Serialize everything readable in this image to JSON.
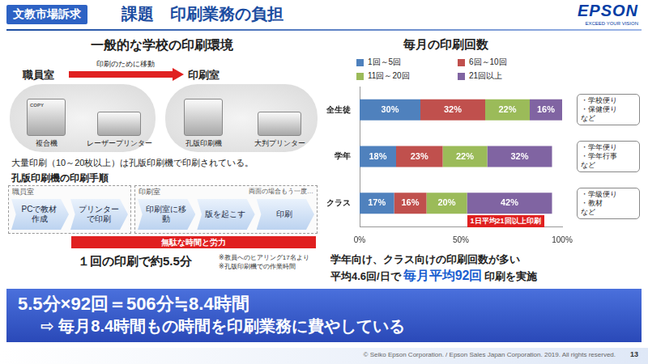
{
  "header": {
    "tag": "文教市場訴求",
    "title": "課題　印刷業務の負担",
    "logo": "EPSON",
    "logo_tagline": "EXCEED YOUR VISION"
  },
  "environment": {
    "title": "一般的な学校の印刷環境",
    "from_room": "職員室",
    "to_room": "印刷室",
    "move_label": "印刷のために移動",
    "from_devices": [
      {
        "label": "複合機",
        "badge": "COPY"
      },
      {
        "label": "レーザープリンター"
      }
    ],
    "to_devices": [
      {
        "label": "孔版印刷機"
      },
      {
        "label": "大判プリンター"
      }
    ],
    "note": "大量印刷（10～20枚以上）は孔版印刷機で印刷されている。"
  },
  "procedure": {
    "title": "孔版印刷機の印刷手順",
    "groups": [
      {
        "label": "職員室",
        "steps": [
          "PCで教材作成",
          "プリンターで印刷"
        ]
      },
      {
        "label": "印刷室",
        "steps": [
          "印刷室に移動",
          "版を起こす",
          "印刷"
        ]
      }
    ],
    "repeat_note": "両面の場合もう一度…",
    "waste_label": "無駄な時間と労力",
    "result": "１回の印刷で約5.5分",
    "footnotes": [
      "※教員へのヒアリング17名より",
      "※孔版印刷機での作業時間"
    ]
  },
  "chart_data": {
    "type": "bar",
    "title": "毎月の印刷回数",
    "orientation": "horizontal",
    "stacked": true,
    "categories": [
      "全生徒",
      "学年",
      "クラス"
    ],
    "series": [
      {
        "name": "1回～5回",
        "color": "#4f81bd",
        "values": [
          30,
          18,
          17
        ],
        "value_labels": [
          "30%",
          "18%",
          "17%"
        ]
      },
      {
        "name": "6回～10回",
        "color": "#c0504d",
        "values": [
          32,
          23,
          16
        ],
        "value_labels": [
          "32%",
          "23%",
          "16%"
        ]
      },
      {
        "name": "11回～20回",
        "color": "#9bbb59",
        "values": [
          22,
          22,
          20
        ],
        "value_labels": [
          "22%",
          "22%",
          "20%"
        ]
      },
      {
        "name": "21回以上",
        "color": "#8064a2",
        "values": [
          16,
          32,
          42
        ],
        "value_labels": [
          "16%",
          "32%",
          "42%"
        ]
      }
    ],
    "xlim": [
      0,
      100
    ],
    "xticks": [
      {
        "value": 0,
        "label": "0%"
      },
      {
        "value": 50,
        "label": "50%"
      },
      {
        "value": 100,
        "label": "100%"
      }
    ],
    "grid": false,
    "legend": "top",
    "data_labels": true,
    "annotations": [
      {
        "category": "全生徒",
        "text": [
          "・学校便り",
          "・保健便り",
          "など"
        ]
      },
      {
        "category": "学年",
        "text": [
          "・学年便り",
          "・学年行事",
          "など"
        ]
      },
      {
        "category": "クラス",
        "text": [
          "・学級便り",
          "・教材",
          "など"
        ]
      }
    ],
    "highlight": {
      "category": "クラス",
      "series": "21回以上",
      "text": "1日平均21回以上印刷"
    }
  },
  "summary": {
    "line1": "学年向け、クラス向けの印刷回数が多い",
    "line2": [
      "平均4.6回/日で",
      "毎月平均92回",
      "印刷を実施"
    ]
  },
  "banner": {
    "line1": "5.5分×92回＝506分≒8.4時間",
    "line2": "⇨ 毎月8.4時間もの時間を印刷業務に費やしている"
  },
  "footer": {
    "copyright": "© Seiko Epson Corporation. / Epson Sales Japan Corporation. 2019.  All rights reserved.",
    "page": "13"
  }
}
